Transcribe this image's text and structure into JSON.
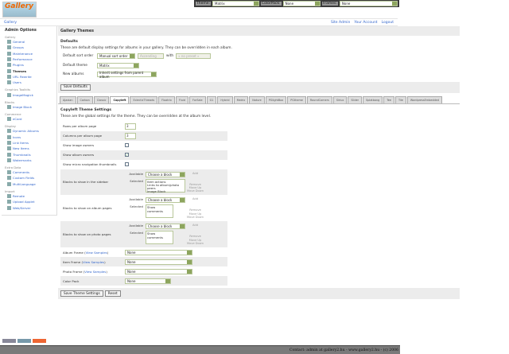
{
  "topbar": {
    "theme_label": "Theme:",
    "theme_value": "Matrix",
    "colorpack_label": "ColorPack:",
    "colorpack_value": "None",
    "frames_label": "Frames:",
    "frames_value": "None"
  },
  "logo": "Gallery",
  "breadcrumb": "Gallery",
  "header_links": [
    "Site Admin",
    "Your Account",
    "Logout"
  ],
  "sidebar": {
    "title": "Admin Options",
    "groups": [
      {
        "label": "Gallery",
        "items": [
          "General",
          "Groups",
          "Maintenance",
          "Performance",
          "Plugins",
          "Themes",
          "URL Rewrite",
          "Users"
        ]
      },
      {
        "label": "Graphics Toolkits",
        "items": [
          "ImageMagick"
        ]
      },
      {
        "label": "Blocks",
        "items": [
          "Image Block"
        ]
      },
      {
        "label": "Commerce",
        "items": [
          "eCard"
        ]
      },
      {
        "label": "Display",
        "items": [
          "Dynamic Albums",
          "Icons",
          "Link Items",
          "New Items",
          "Thumbnails",
          "Watermarks"
        ]
      },
      {
        "label": "Extra Data",
        "items": [
          "Comments",
          "Custom Fields",
          "MultiLanguage"
        ]
      },
      {
        "label": "Import",
        "items": [
          "Remote",
          "Upload Applet",
          "Web/Server"
        ]
      }
    ],
    "current": "Themes"
  },
  "page_title": "Gallery Themes",
  "defaults": {
    "heading": "Defaults",
    "description": "These are default display settings for albums in your gallery. They can be overridden in each album.",
    "sort_label": "Default sort order",
    "sort_value": "Manual sort order",
    "direction_value": "Ascending",
    "with_label": "with",
    "with_value": "« no preset »",
    "theme_label": "Default theme",
    "theme_value": "Matrix",
    "new_albums_label": "New albums",
    "new_albums_value": "Inherit settings from parent album",
    "save_label": "Save Defaults"
  },
  "tabs": [
    "Ajaxian",
    "Carbon",
    "Classic",
    "Copyleft",
    "EclecticThreads",
    "Floatrix",
    "Fluid",
    "ForSale",
    "G1",
    "Hybrid",
    "Matrix",
    "Nature",
    "PGlightBox",
    "PGtheme",
    "RoundCorners",
    "Siriux",
    "Slider",
    "Splatbang",
    "Tee",
    "Tile",
    "WordpressEmbedded"
  ],
  "active_tab": "Copyleft",
  "theme_settings": {
    "heading": "Copyleft Theme Settings",
    "description": "These are the global settings for the theme. They can be overridden at the album level.",
    "rows_label": "Rows per album page",
    "rows_value": "3",
    "cols_label": "Columns per album page",
    "cols_value": "3",
    "show_image_owners": {
      "label": "Show image owners",
      "checked": false
    },
    "show_album_owners": {
      "label": "Show album owners",
      "checked": true
    },
    "show_micro_nav": {
      "label": "Show micro navigation thumbnails",
      "checked": false
    },
    "available_label": "Available",
    "selected_label": "Selected",
    "choose": "Choose a block",
    "add": "Add",
    "remove": "Remove",
    "move_up": "Move Up",
    "move_down": "Move Down",
    "sidebar_blocks": {
      "label": "Blocks to show in the sidebar",
      "selected": [
        "Item actions",
        "Links to album/photo peers",
        "Image Block"
      ]
    },
    "album_blocks": {
      "label": "Blocks to show on album pages",
      "selected": [
        "Show comments"
      ]
    },
    "photo_blocks": {
      "label": "Blocks to show on photo pages",
      "selected": [
        "Show comments"
      ]
    },
    "view_samples": "View Samples",
    "album_frame": {
      "label": "Album Frame",
      "value": "None"
    },
    "item_frame": {
      "label": "Item Frame",
      "value": "None"
    },
    "photo_frame": {
      "label": "Photo Frame",
      "value": "None"
    },
    "color_pack": {
      "label": "Color Pack",
      "value": "None"
    },
    "save_label": "Save Theme Settings",
    "reset_label": "Reset"
  },
  "badges": [
    "W3C XHTML 1.0",
    "Gallery 2.x",
    "Valid Gallery"
  ],
  "footer": "Contact: admin at gallery2.hu - www.gallery2.hu - (c) 2006"
}
